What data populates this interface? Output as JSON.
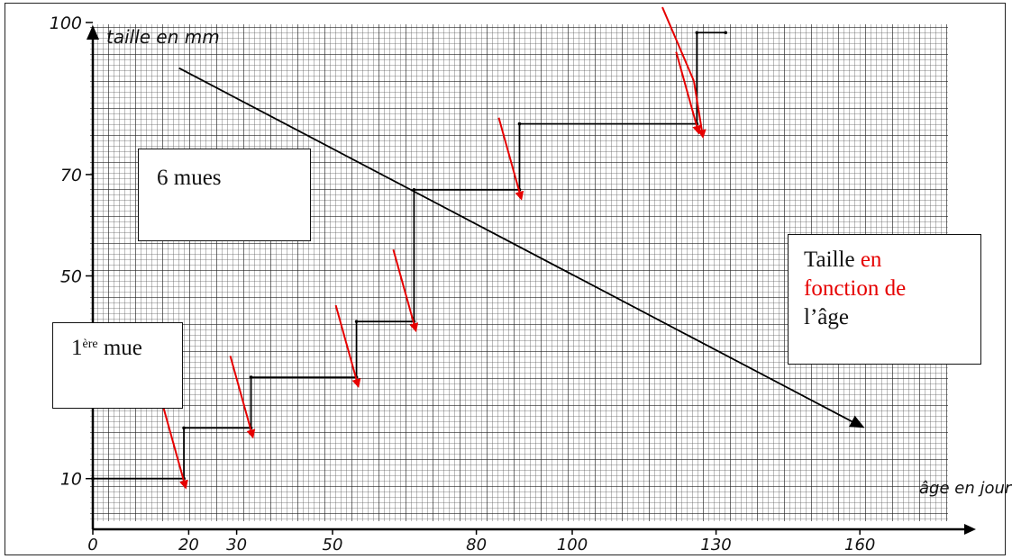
{
  "chart_data": {
    "type": "line",
    "title": "",
    "ylabel": "taille en mm",
    "xlabel": "âge en jour",
    "y_ticks": [
      "10",
      "50",
      "70",
      "100"
    ],
    "x_ticks": [
      "0",
      "20",
      "30",
      "50",
      "80",
      "100",
      "130",
      "160"
    ],
    "series": [
      {
        "values_xy": [
          [
            0,
            10
          ],
          [
            19,
            10
          ],
          [
            19,
            20
          ],
          [
            33,
            20
          ],
          [
            33,
            30
          ],
          [
            55,
            30
          ],
          [
            55,
            41
          ],
          [
            67,
            41
          ],
          [
            67,
            67
          ],
          [
            89,
            67
          ],
          [
            89,
            80
          ],
          [
            126,
            80
          ],
          [
            126,
            98
          ],
          [
            132,
            98
          ]
        ]
      }
    ],
    "trend_arrow": {
      "from": [
        18,
        91
      ],
      "to": [
        161,
        20
      ]
    },
    "molt_points": [
      [
        19,
        10
      ],
      [
        33,
        20
      ],
      [
        55,
        30
      ],
      [
        67,
        41
      ],
      [
        89,
        67
      ],
      [
        126,
        80
      ]
    ]
  },
  "annotations": {
    "mues_label": "6 mues",
    "first_molt_number": "1",
    "first_molt_sup": "ère",
    "first_molt_word": "mue",
    "taille_line1": "Taille",
    "taille_red1": "en",
    "taille_red2": "fonction de",
    "taille_line3": "l’âge"
  },
  "colors": {
    "grid": "#4a4a4a",
    "curve": "#000000",
    "arrows": "#e60000"
  }
}
